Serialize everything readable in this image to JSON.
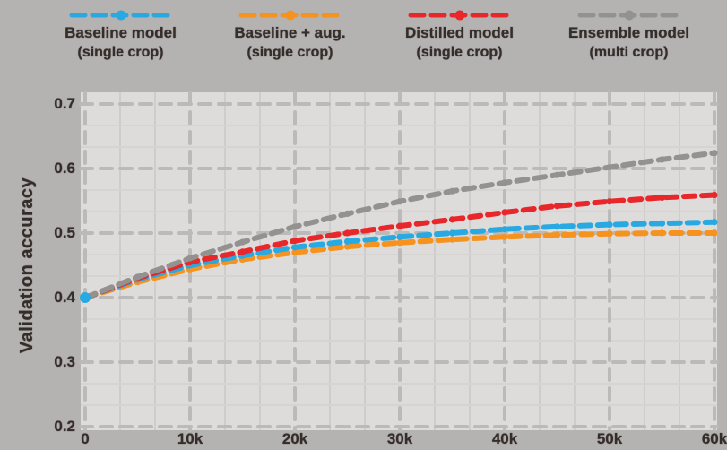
{
  "figure": {
    "background": "#b5b3b2",
    "plot_background": "#dedcdb",
    "text_color": "#352d2a",
    "grid_major_color": "#bcbab9",
    "grid_minor_color": "#cfcdcc"
  },
  "legend": {
    "items": [
      {
        "key": "baseline",
        "color": "#29a9e1",
        "label_line1": "Baseline model",
        "label_line2": "(single crop)"
      },
      {
        "key": "baseline-aug",
        "color": "#f6921e",
        "label_line1": "Baseline + aug.",
        "label_line2": "(single crop)"
      },
      {
        "key": "distilled",
        "color": "#e8272b",
        "label_line1": "Distilled model",
        "label_line2": "(single crop)"
      },
      {
        "key": "ensemble",
        "color": "#949290",
        "label_line1": "Ensemble model",
        "label_line2": "(multi crop)"
      }
    ]
  },
  "y_axis": {
    "title": "Validation accuracy",
    "tick_labels": [
      "0.7",
      "0.6",
      "0.5",
      "0.4",
      "0.3",
      "0.2"
    ]
  },
  "x_axis": {
    "tick_labels": [
      "0",
      "10k",
      "20k",
      "30k",
      "40k",
      "50k",
      "60k"
    ]
  },
  "chart_data": {
    "type": "line",
    "title": "",
    "xlabel": "",
    "ylabel": "Validation accuracy",
    "x": [
      0,
      5000,
      10000,
      15000,
      20000,
      25000,
      30000,
      35000,
      40000,
      45000,
      50000,
      55000,
      60000
    ],
    "xlim": [
      0,
      60000
    ],
    "ylim": [
      0.2,
      0.7
    ],
    "grid": true,
    "legend_position": "top",
    "series": [
      {
        "name": "Baseline model (single crop)",
        "color": "#29a9e1",
        "values": [
          0.4,
          0.428,
          0.45,
          0.465,
          0.478,
          0.487,
          0.494,
          0.5,
          0.506,
          0.51,
          0.513,
          0.515,
          0.517
        ]
      },
      {
        "name": "Baseline + aug. (single crop)",
        "color": "#f6921e",
        "values": [
          0.4,
          0.424,
          0.444,
          0.459,
          0.47,
          0.479,
          0.485,
          0.49,
          0.494,
          0.497,
          0.499,
          0.5,
          0.5
        ]
      },
      {
        "name": "Distilled model (single crop)",
        "color": "#e8272b",
        "values": [
          0.4,
          0.43,
          0.455,
          0.471,
          0.488,
          0.5,
          0.511,
          0.521,
          0.532,
          0.542,
          0.549,
          0.555,
          0.559
        ]
      },
      {
        "name": "Ensemble model (multi crop)",
        "color": "#949290",
        "values": [
          0.4,
          0.432,
          0.461,
          0.486,
          0.51,
          0.53,
          0.549,
          0.565,
          0.578,
          0.59,
          0.602,
          0.614,
          0.624
        ]
      }
    ]
  }
}
